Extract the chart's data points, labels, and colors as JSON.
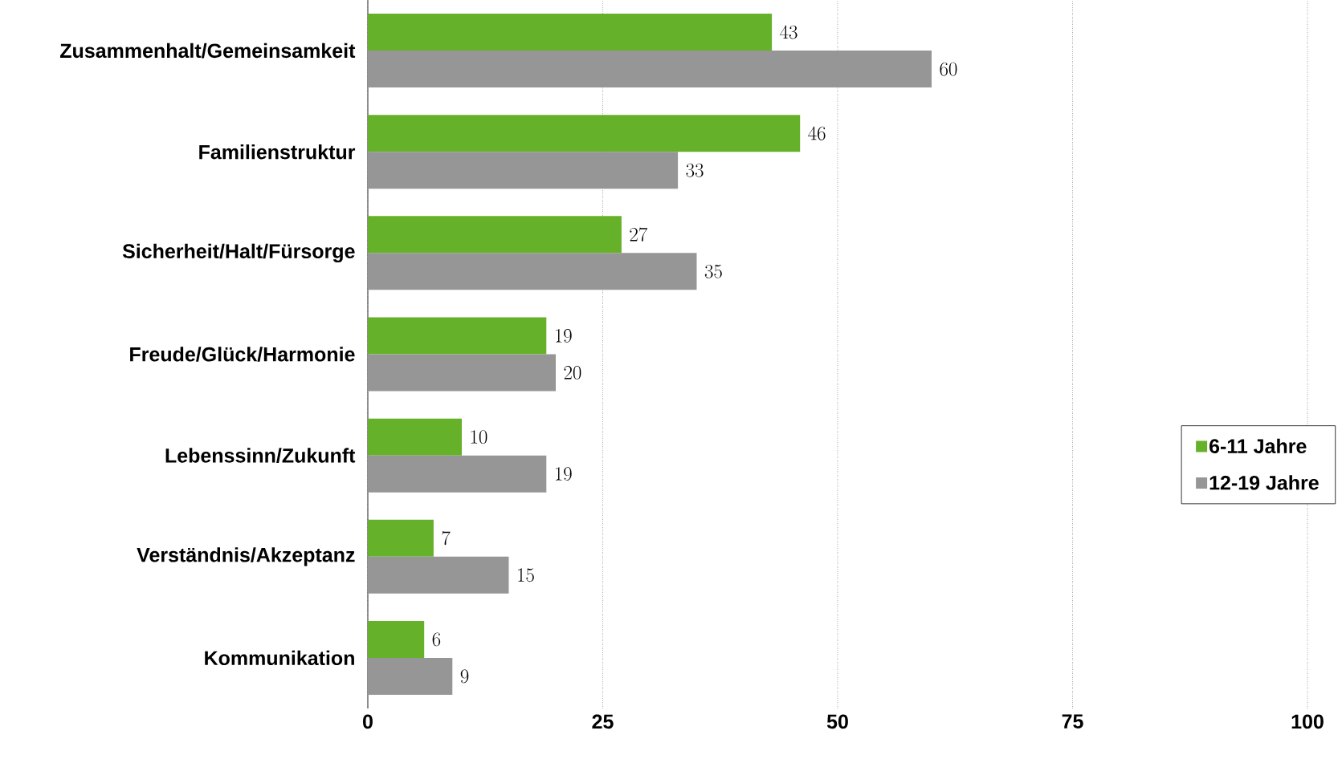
{
  "chart_data": {
    "type": "bar",
    "orientation": "horizontal",
    "categories": [
      "Zusammenhalt/Gemeinsamkeit",
      "Familienstruktur",
      "Sicherheit/Halt/Fürsorge",
      "Freude/Glück/Harmonie",
      "Lebenssinn/Zukunft",
      "Verständnis/Akzeptanz",
      "Kommunikation"
    ],
    "series": [
      {
        "name": "6-11 Jahre",
        "color": "#66b12a",
        "values": [
          43,
          46,
          27,
          19,
          10,
          7,
          6
        ]
      },
      {
        "name": "12-19 Jahre",
        "color": "#969696",
        "values": [
          60,
          33,
          35,
          20,
          19,
          15,
          9
        ]
      }
    ],
    "xlim": [
      0,
      100
    ],
    "xticks": [
      0,
      25,
      50,
      75,
      100
    ],
    "grid": "x",
    "legend": "right",
    "data_labels": true
  }
}
